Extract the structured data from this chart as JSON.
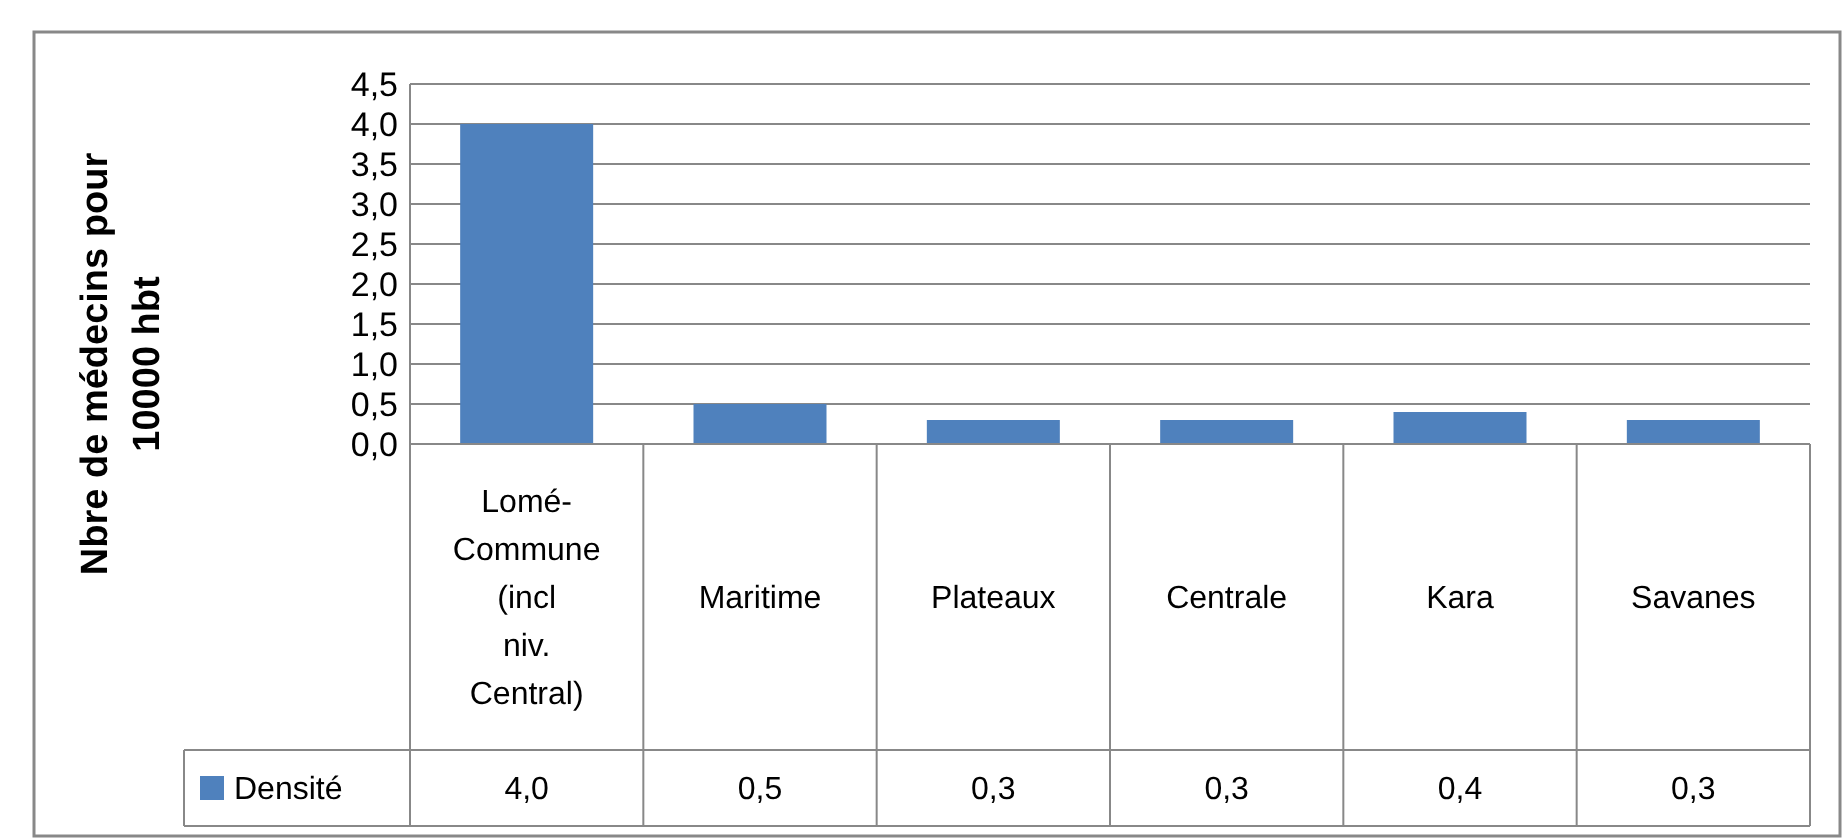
{
  "chart_data": {
    "type": "bar",
    "ylabel": "Nbre de médecins pour 10000 hbt",
    "categories": [
      "Lomé-Commune (incl niv. Central)",
      "Maritime",
      "Plateaux",
      "Centrale",
      "Kara",
      "Savanes"
    ],
    "series": [
      {
        "name": "Densité",
        "color": "#4f81bd",
        "values": [
          4.0,
          0.5,
          0.3,
          0.3,
          0.4,
          0.3
        ],
        "value_labels": [
          "4,0",
          "0,5",
          "0,3",
          "0,3",
          "0,4",
          "0,3"
        ]
      }
    ],
    "ylim": [
      0,
      4.5
    ],
    "yticks": [
      {
        "value": 0,
        "label": "0,0"
      },
      {
        "value": 0.5,
        "label": "0,5"
      },
      {
        "value": 1,
        "label": "1,0"
      },
      {
        "value": 1.5,
        "label": "1,5"
      },
      {
        "value": 2,
        "label": "2,0"
      },
      {
        "value": 2.5,
        "label": "2,5"
      },
      {
        "value": 3,
        "label": "3,0"
      },
      {
        "value": 3.5,
        "label": "3,5"
      },
      {
        "value": 4,
        "label": "4,0"
      },
      {
        "value": 4.5,
        "label": "4,5"
      }
    ],
    "grid": "y",
    "legend": "bottom"
  }
}
